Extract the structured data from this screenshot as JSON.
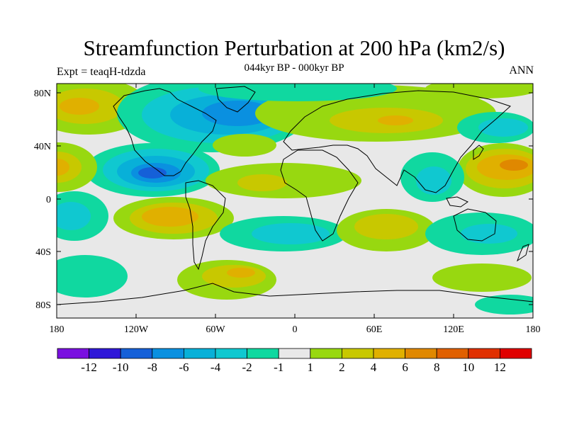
{
  "title": "Streamfunction Perturbation at 200 hPa (km2/s)",
  "subtitle": "044kyr BP - 000kyr BP",
  "left_label": "Expt = teaqH-tdzda",
  "right_label": "ANN",
  "axes": {
    "lat_ticks": [
      "80N",
      "40N",
      "0",
      "40S",
      "80S"
    ],
    "lon_ticks": [
      "180",
      "120W",
      "60W",
      "0",
      "60E",
      "120E",
      "180"
    ]
  },
  "colorbar": {
    "colors": [
      "#7a10e0",
      "#2f18d8",
      "#1560d8",
      "#0a90e0",
      "#08b0d8",
      "#10c8d0",
      "#10d8a0",
      "#e8e8e8",
      "#98d810",
      "#c8c800",
      "#e0b000",
      "#e08800",
      "#e06000",
      "#e03000",
      "#e00000"
    ],
    "labels": [
      "-12",
      "-10",
      "-8",
      "-6",
      "-4",
      "-2",
      "-1",
      "1",
      "2",
      "4",
      "6",
      "8",
      "10",
      "12"
    ]
  },
  "colors": {
    "background": "#e8e8e8",
    "coast": "#000000"
  }
}
